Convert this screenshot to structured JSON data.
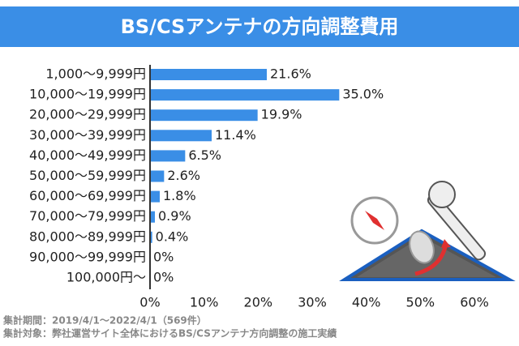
{
  "chart_data": {
    "type": "barh",
    "title": "BS/CSアンテナの方向調整費用",
    "categories": [
      "1,000～9,999円",
      "10,000～19,999円",
      "20,000～29,999円",
      "30,000～39,999円",
      "40,000～49,999円",
      "50,000～59,999円",
      "60,000～69,999円",
      "70,000～79,999円",
      "80,000～89,999円",
      "90,000～99,999円",
      "100,000円～"
    ],
    "values": [
      21.6,
      35.0,
      19.9,
      11.4,
      6.5,
      2.6,
      1.8,
      0.9,
      0.4,
      0,
      0
    ],
    "value_labels": [
      "21.6%",
      "35.0%",
      "19.9%",
      "11.4%",
      "6.5%",
      "2.6%",
      "1.8%",
      "0.9%",
      "0.4%",
      "0%",
      "0%"
    ],
    "color": "#3a8ee6",
    "xlim": [
      0,
      60
    ],
    "xticks": [
      {
        "value": 0,
        "label": "0%"
      },
      {
        "value": 10,
        "label": "10%"
      },
      {
        "value": 20,
        "label": "20%"
      },
      {
        "value": 30,
        "label": "30%"
      },
      {
        "value": 40,
        "label": "40%"
      },
      {
        "value": 50,
        "label": "50%"
      },
      {
        "value": 60,
        "label": "60%"
      }
    ],
    "notes": [
      "集計期間：2019/4/1～2022/4/1（569件）",
      "集計対象：弊社運営サイト全体におけるBS/CSアンテナ方向調整の施工実績"
    ]
  }
}
